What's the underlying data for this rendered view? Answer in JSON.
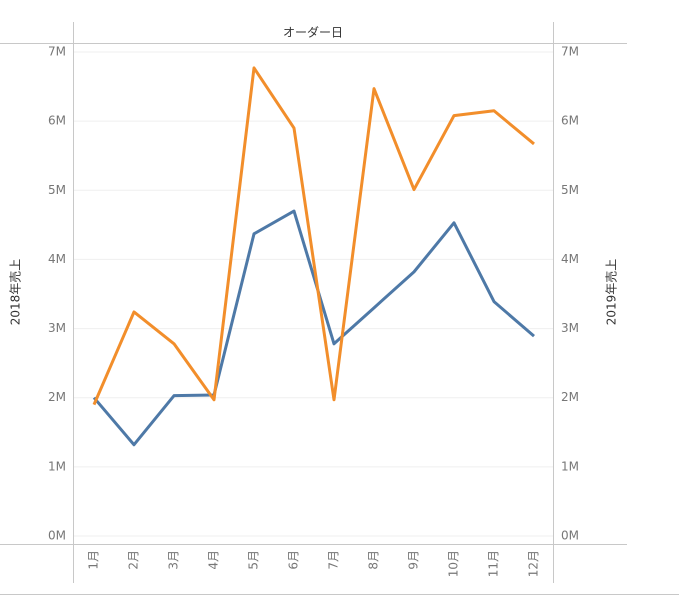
{
  "chart_data": {
    "type": "line",
    "title": "オーダー日",
    "y_label": "2018年売上",
    "y2_label": "2019年売上",
    "categories": [
      "1月",
      "2月",
      "3月",
      "4月",
      "5月",
      "6月",
      "7月",
      "8月",
      "9月",
      "10月",
      "11月",
      "12月"
    ],
    "series": [
      {
        "color": "#4e79a7",
        "values": [
          2000000,
          1320000,
          2030000,
          2040000,
          4370000,
          4700000,
          2780000,
          3300000,
          3820000,
          4530000,
          3390000,
          2890000
        ]
      },
      {
        "color": "#f28e2b",
        "axis": "y2",
        "values": [
          1900000,
          3240000,
          2780000,
          1970000,
          6770000,
          5900000,
          1970000,
          6470000,
          5010000,
          6080000,
          6150000,
          5670000
        ]
      }
    ],
    "ylim": [
      0,
      7000000
    ],
    "yticks": [
      {
        "value": 0,
        "label": "0M"
      },
      {
        "value": 1000000,
        "label": "1M"
      },
      {
        "value": 2000000,
        "label": "2M"
      },
      {
        "value": 3000000,
        "label": "3M"
      },
      {
        "value": 4000000,
        "label": "4M"
      },
      {
        "value": 5000000,
        "label": "5M"
      },
      {
        "value": 6000000,
        "label": "6M"
      },
      {
        "value": 7000000,
        "label": "7M"
      }
    ],
    "y2lim": [
      0,
      7000000
    ],
    "y2ticks": [
      {
        "value": 0,
        "label": "0M"
      },
      {
        "value": 1000000,
        "label": "1M"
      },
      {
        "value": 2000000,
        "label": "2M"
      },
      {
        "value": 3000000,
        "label": "3M"
      },
      {
        "value": 4000000,
        "label": "4M"
      },
      {
        "value": 5000000,
        "label": "5M"
      },
      {
        "value": 6000000,
        "label": "6M"
      },
      {
        "value": 7000000,
        "label": "7M"
      }
    ],
    "grid": true
  }
}
